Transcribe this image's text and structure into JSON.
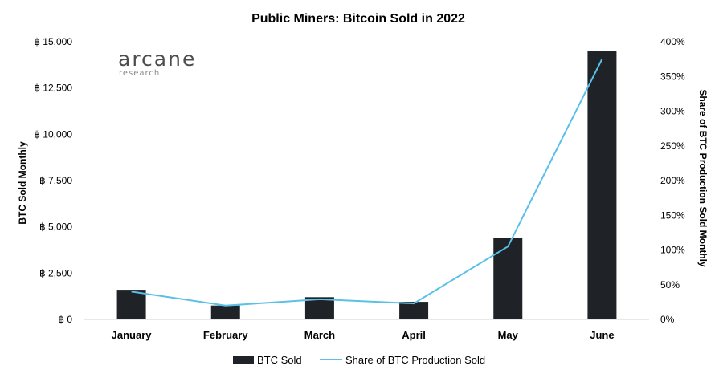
{
  "chart_data": {
    "type": "bar",
    "title": "Public Miners: Bitcoin Sold in 2022",
    "categories": [
      "January",
      "February",
      "March",
      "April",
      "May",
      "June"
    ],
    "series": [
      {
        "name": "BTC Sold",
        "type": "bar",
        "axis": "left",
        "values": [
          1600,
          750,
          1200,
          950,
          4400,
          14500
        ],
        "color": "#1f2226"
      },
      {
        "name": "Share of BTC Production Sold",
        "type": "line",
        "axis": "right",
        "values": [
          40,
          20,
          29,
          23,
          105,
          375
        ],
        "color": "#5bc0e8"
      }
    ],
    "ylabel": "BTC Sold Monthly",
    "y2label": "Share of BTC Production Sold Monthly",
    "ylim": [
      0,
      15000
    ],
    "y2lim": [
      0,
      400
    ],
    "yticks": [
      "฿ 0",
      "฿ 2,500",
      "฿ 5,000",
      "฿ 7,500",
      "฿ 10,000",
      "฿ 12,500",
      "฿ 15,000"
    ],
    "y2ticks": [
      "0%",
      "50%",
      "100%",
      "150%",
      "200%",
      "250%",
      "300%",
      "350%",
      "400%"
    ],
    "legend": "bottom",
    "grid": false
  },
  "logo": {
    "name": "arcane",
    "sub": "research"
  }
}
